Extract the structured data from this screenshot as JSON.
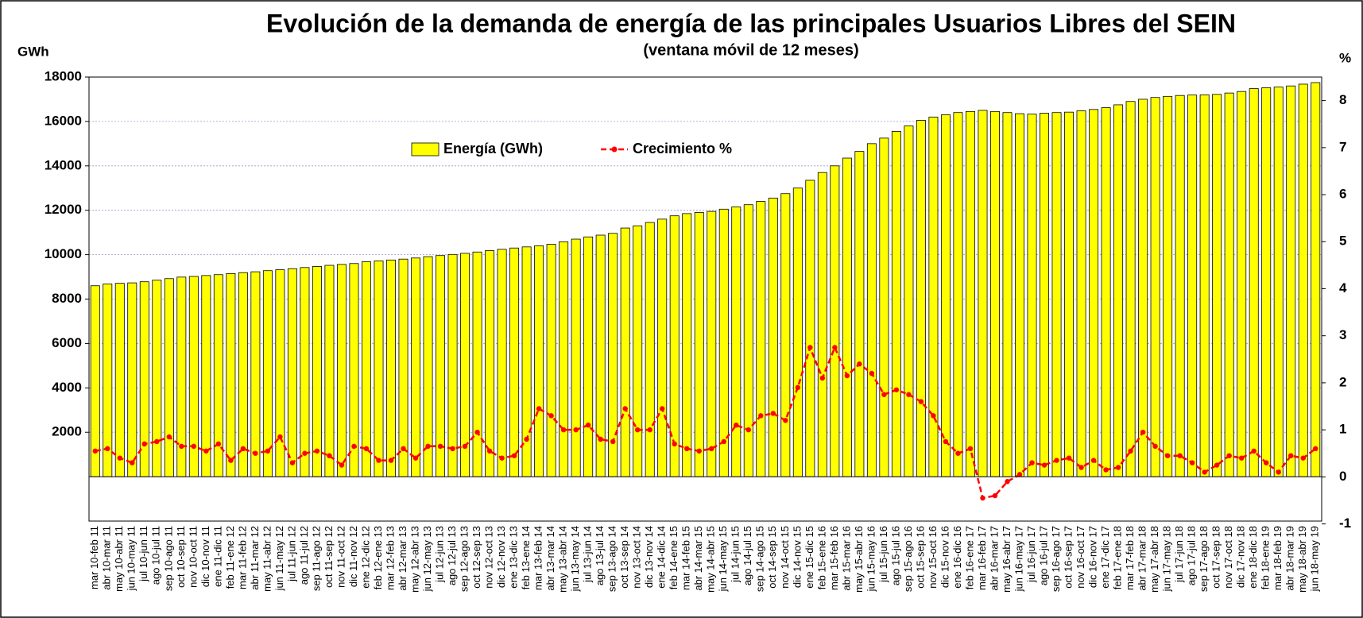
{
  "chart_data": {
    "type": "bar",
    "title": "Evolución de la demanda de energía de las principales Usuarios Libres del SEIN",
    "subtitle": "(ventana móvil de 12 meses)",
    "y_label": "GWh",
    "y2_label": "%",
    "categories": [
      "mar 10-feb 11",
      "abr 10-mar 11",
      "may 10-abr 11",
      "jun 10-may 11",
      "jul 10-jun 11",
      "ago 10-jul 11",
      "sep 10-ago 11",
      "oct 10-sep 11",
      "nov 10-oct 11",
      "dic 10-nov 11",
      "ene 11-dic 11",
      "feb 11-ene 12",
      "mar 11-feb 12",
      "abr 11-mar 12",
      "may 11-abr 12",
      "jun 11-may 12",
      "jul 11-jun 12",
      "ago 11-jul 12",
      "sep 11-ago 12",
      "oct 11-sep 12",
      "nov 11-oct 12",
      "dic 11-nov 12",
      "ene 12-dic 12",
      "feb 12-ene 13",
      "mar 12-feb 13",
      "abr 12-mar 13",
      "may 12-abr 13",
      "jun 12-may 13",
      "jul 12-jun 13",
      "ago 12-jul 13",
      "sep 12-ago 13",
      "oct 12-sep 13",
      "nov 12-oct 13",
      "dic 12-nov 13",
      "ene 13-dic 13",
      "feb 13-ene 14",
      "mar 13-feb 14",
      "abr 13-mar 14",
      "may 13-abr 14",
      "jun 13-may 14",
      "jul 13-jun 14",
      "ago 13-jul 14",
      "sep 13-ago 14",
      "oct 13-sep 14",
      "nov 13-oct 14",
      "dic 13-nov 14",
      "ene 14-dic 14",
      "feb 14-ene 15",
      "mar 14-feb 15",
      "abr 14-mar 15",
      "may 14-abr 15",
      "jun 14-may 15",
      "jul 14-jun 15",
      "ago 14-jul 15",
      "sep 14-ago 15",
      "oct 14-sep 15",
      "nov 14-oct 15",
      "dic 14-nov 15",
      "ene 15-dic 15",
      "feb 15-ene 16",
      "mar 15-feb 16",
      "abr 15-mar 16",
      "may 15-abr 16",
      "jun 15-may 16",
      "jul 15-jun 16",
      "ago 15-jul 16",
      "sep 15-ago 16",
      "oct 15-sep 16",
      "nov 15-oct 16",
      "dic 15-nov 16",
      "ene 16-dic 16",
      "feb 16-ene 17",
      "mar 16-feb 17",
      "abr 16-mar 17",
      "may 16-abr 17",
      "jun 16-may 17",
      "jul 16-jun 17",
      "ago 16-jul 17",
      "sep 16-ago 17",
      "oct 16-sep 17",
      "nov 16-oct 17",
      "dic 16-nov 17",
      "ene 17-dic 17",
      "feb 17-ene 18",
      "mar 17-feb 18",
      "abr 17-mar 18",
      "may 17-abr 18",
      "jun 17-may 18",
      "jul 17-jun 18",
      "ago 17-jul 18",
      "sep 17-ago 18",
      "oct 17-sep 18",
      "nov 17-oct 18",
      "dic 17-nov 18",
      "ene 18-dic 18",
      "feb 18-ene 19",
      "mar 18-feb 19",
      "abr 18-mar 19",
      "may 18-abr 19",
      "jun 18-may 19"
    ],
    "series": [
      {
        "name": "Energía (GWh)",
        "type": "bar",
        "color": "#ffff00",
        "values": [
          8600,
          8680,
          8710,
          8730,
          8780,
          8850,
          8920,
          8990,
          9020,
          9060,
          9100,
          9150,
          9190,
          9230,
          9280,
          9320,
          9370,
          9420,
          9470,
          9520,
          9560,
          9600,
          9680,
          9720,
          9760,
          9800,
          9850,
          9910,
          9960,
          10010,
          10060,
          10120,
          10180,
          10240,
          10300,
          10350,
          10400,
          10470,
          10580,
          10700,
          10800,
          10880,
          10960,
          11200,
          11300,
          11450,
          11600,
          11750,
          11850,
          11900,
          11950,
          12050,
          12150,
          12250,
          12400,
          12550,
          12750,
          13000,
          13350,
          13700,
          14000,
          14350,
          14650,
          15000,
          15250,
          15550,
          15800,
          16050,
          16200,
          16300,
          16400,
          16450,
          16500,
          16450,
          16400,
          16350,
          16330,
          16370,
          16400,
          16420,
          16480,
          16540,
          16620,
          16750,
          16900,
          17000,
          17080,
          17130,
          17170,
          17190,
          17200,
          17220,
          17280,
          17350,
          17480,
          17520,
          17550,
          17600,
          17680,
          17750
        ]
      },
      {
        "name": "Crecimiento %",
        "type": "line",
        "axis": "y2",
        "color": "#ff0000",
        "values": [
          0.55,
          0.6,
          0.4,
          0.3,
          0.7,
          0.75,
          0.85,
          0.65,
          0.65,
          0.55,
          0.7,
          0.35,
          0.6,
          0.5,
          0.55,
          0.85,
          0.3,
          0.5,
          0.55,
          0.45,
          0.25,
          0.65,
          0.6,
          0.35,
          0.35,
          0.6,
          0.4,
          0.65,
          0.65,
          0.6,
          0.65,
          0.95,
          0.55,
          0.4,
          0.45,
          0.8,
          1.45,
          1.3,
          1.0,
          1.0,
          1.1,
          0.8,
          0.75,
          1.45,
          1.0,
          1.0,
          1.45,
          0.7,
          0.6,
          0.55,
          0.6,
          0.75,
          1.1,
          1.0,
          1.3,
          1.35,
          1.2,
          1.9,
          2.75,
          2.1,
          2.75,
          2.15,
          2.4,
          2.2,
          1.75,
          1.85,
          1.75,
          1.6,
          1.3,
          0.75,
          0.5,
          0.6,
          -0.45,
          -0.4,
          -0.1,
          0.05,
          0.3,
          0.25,
          0.35,
          0.4,
          0.2,
          0.35,
          0.15,
          0.2,
          0.55,
          0.95,
          0.65,
          0.45,
          0.45,
          0.3,
          0.1,
          0.25,
          0.45,
          0.4,
          0.55,
          0.3,
          0.1,
          0.45,
          0.4,
          0.6
        ]
      }
    ],
    "ylim": [
      -2000,
      18000
    ],
    "yticks": [
      2000,
      4000,
      6000,
      8000,
      10000,
      12000,
      14000,
      16000,
      18000
    ],
    "y2lim": [
      -0.94,
      8.5
    ],
    "y2ticks": [
      -1,
      0,
      1,
      2,
      3,
      4,
      5,
      6,
      7,
      8
    ],
    "grid": true,
    "legend": "top"
  }
}
